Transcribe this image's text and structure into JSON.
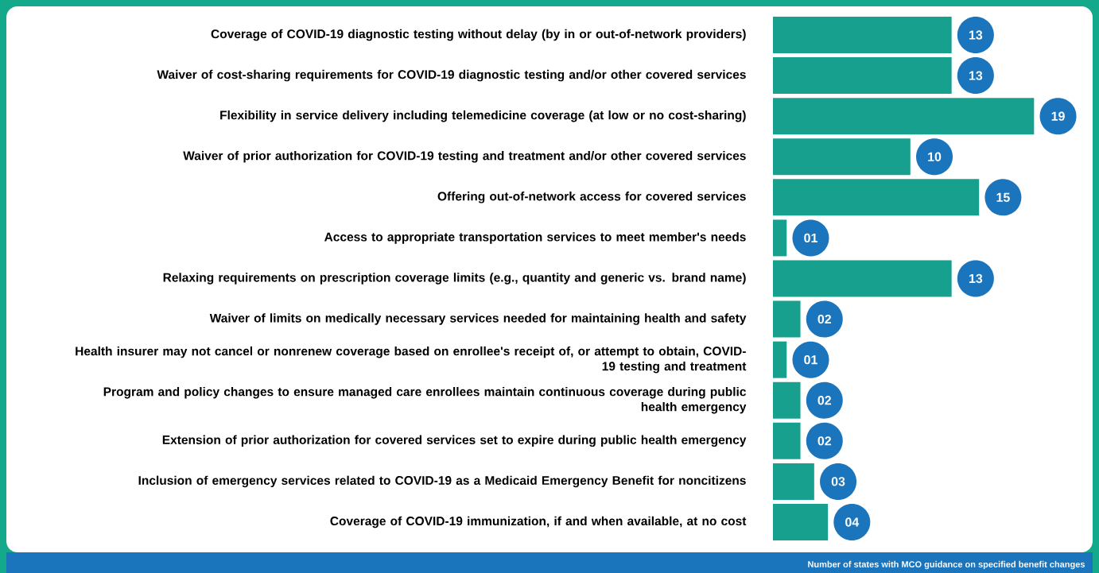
{
  "chart_data": {
    "type": "bar",
    "orientation": "horizontal",
    "xlabel": "Number of states with MCO guidance on specified benefit changes",
    "categories": [
      "Coverage of COVID-19 diagnostic testing without delay (by in or out-of-network providers)",
      "Waiver of cost-sharing requirements for COVID-19 diagnostic testing and/or other covered services",
      "Flexibility in service delivery including telemedicine coverage (at low or no cost-sharing)",
      "Waiver of prior authorization for COVID-19 testing and treatment and/or other covered services",
      "Offering out-of-network access for covered services",
      "Access to appropriate transportation services to meet member's needs",
      "Relaxing requirements on prescription coverage limits (e.g., quantity and generic vs. brand name)",
      "Waiver of limits on medically necessary services needed for maintaining health and safety",
      "Health insurer may not cancel or nonrenew coverage based on enrollee's receipt of, or attempt to obtain, COVID-19 testing and treatment",
      "Program and policy changes to ensure managed care enrollees maintain continuous coverage during public health emergency",
      "Extension of prior authorization for covered services set to expire during public health emergency",
      "Inclusion of emergency services related to COVID-19 as a Medicaid Emergency Benefit for noncitizens",
      "Coverage of COVID-19 immunization, if and when available, at no cost"
    ],
    "values": [
      13,
      13,
      19,
      10,
      15,
      1,
      13,
      2,
      1,
      2,
      2,
      3,
      4
    ],
    "value_labels": [
      "13",
      "13",
      "19",
      "10",
      "15",
      "01",
      "13",
      "02",
      "01",
      "02",
      "02",
      "03",
      "04"
    ],
    "color": "#17a08e"
  }
}
